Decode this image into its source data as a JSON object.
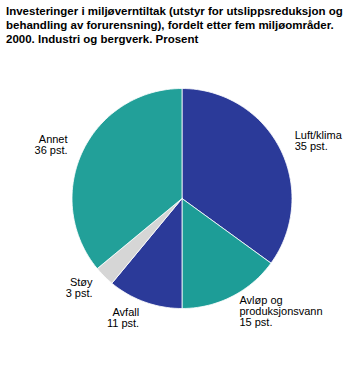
{
  "chart_data": {
    "type": "pie",
    "title": "Investeringer i miljøverntiltak (utstyr for utslippsreduksjon og behandling av forurensning), fordelt etter fem miljøområder. 2000. Industri og bergverk. Prosent",
    "categories": [
      "Luft/klima",
      "Avløp og produksjonsvann",
      "Avfall",
      "Støy",
      "Annet"
    ],
    "values": [
      35,
      15,
      11,
      3,
      36
    ],
    "value_labels": [
      "35 pst.",
      "15 pst.",
      "11 pst.",
      "3 pst.",
      "36 pst."
    ],
    "colors": [
      "#2b3a99",
      "#1d9d97",
      "#2b3a99",
      "#d6d6d6",
      "#22a099"
    ],
    "data_labels": true
  }
}
